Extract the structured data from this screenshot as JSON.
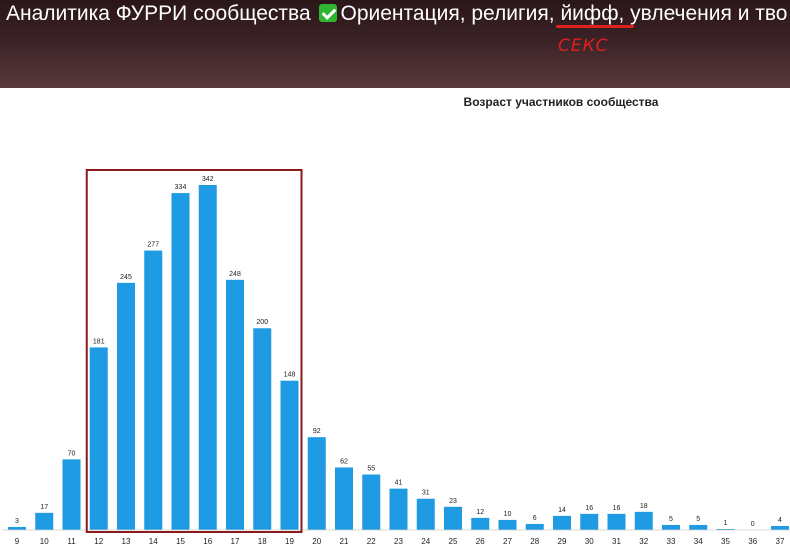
{
  "banner": {
    "title_part1": "Аналитика ФУРРИ сообщества",
    "title_part2": "Ориентация, религия, йифф, увлечения и тво",
    "annotation": "СЕКС",
    "check_icon": "check-mark-icon"
  },
  "colors": {
    "bar": "#1e9be3",
    "highlight_box": "#8b1a1a",
    "annotation": "#e01f1f"
  },
  "chart_data": {
    "type": "bar",
    "title": "Возраст участников сообщества",
    "xlabel": "",
    "ylabel": "",
    "categories": [
      "9",
      "10",
      "11",
      "12",
      "13",
      "14",
      "15",
      "16",
      "17",
      "18",
      "19",
      "20",
      "21",
      "22",
      "23",
      "24",
      "25",
      "26",
      "27",
      "28",
      "29",
      "30",
      "31",
      "32",
      "33",
      "34",
      "35",
      "36",
      "37"
    ],
    "values": [
      3,
      17,
      70,
      181,
      245,
      277,
      334,
      342,
      248,
      200,
      148,
      92,
      62,
      55,
      41,
      31,
      23,
      12,
      10,
      6,
      14,
      16,
      16,
      18,
      5,
      5,
      1,
      0,
      4
    ],
    "ylim": [
      0,
      342
    ],
    "grid": false,
    "highlight_categories": [
      "12",
      "19"
    ]
  }
}
